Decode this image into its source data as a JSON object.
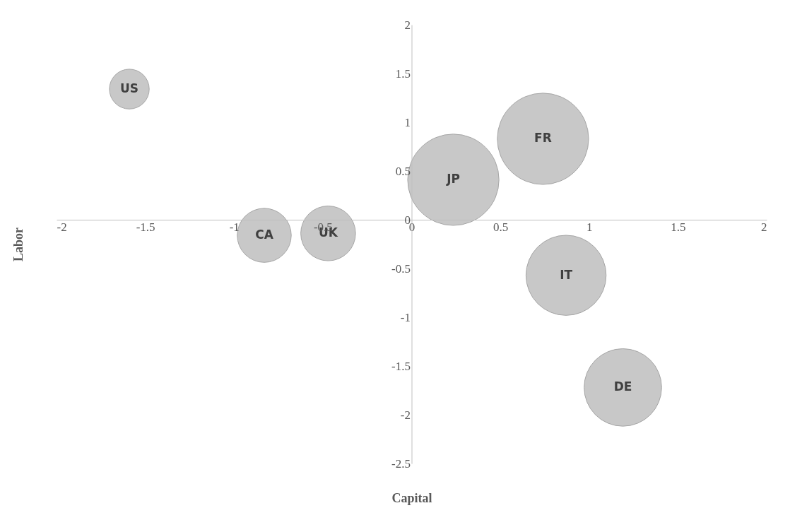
{
  "chart_data": {
    "type": "bubble",
    "xlabel": "Capital",
    "ylabel": "Labor",
    "xlim": [
      -2,
      2
    ],
    "xticks": [
      -2,
      -1.5,
      -1,
      -0.5,
      0,
      0.5,
      1,
      1.5,
      2
    ],
    "ylim": [
      -2.5,
      2
    ],
    "yticks": [
      -2.5,
      -2,
      -1.5,
      -1,
      -0.5,
      0,
      0.5,
      1,
      1.5,
      2
    ],
    "grid": false,
    "series": [
      {
        "color": "#c8c8c8",
        "x": [
          -1.59,
          -0.83,
          -0.47,
          0.235,
          0.74,
          0.87,
          1.19
        ],
        "values": [
          1.34,
          -0.16,
          -0.14,
          0.41,
          0.83,
          -0.57,
          -1.72
        ],
        "sizes": [
          0.19,
          0.35,
          0.36,
          1,
          1,
          0.77,
          0.72
        ]
      }
    ],
    "annotations": [
      {
        "text": "US",
        "x": -1.59,
        "y": 1.34
      },
      {
        "text": "CA",
        "x": -0.83,
        "y": -0.16
      },
      {
        "text": "UK",
        "x": -0.47,
        "y": -0.14
      },
      {
        "text": "JP",
        "x": 0.235,
        "y": 0.41
      },
      {
        "text": "FR",
        "x": 0.74,
        "y": 0.83
      },
      {
        "text": "IT",
        "x": 0.87,
        "y": -0.57
      },
      {
        "text": "DE",
        "x": 1.19,
        "y": -1.72
      }
    ]
  }
}
